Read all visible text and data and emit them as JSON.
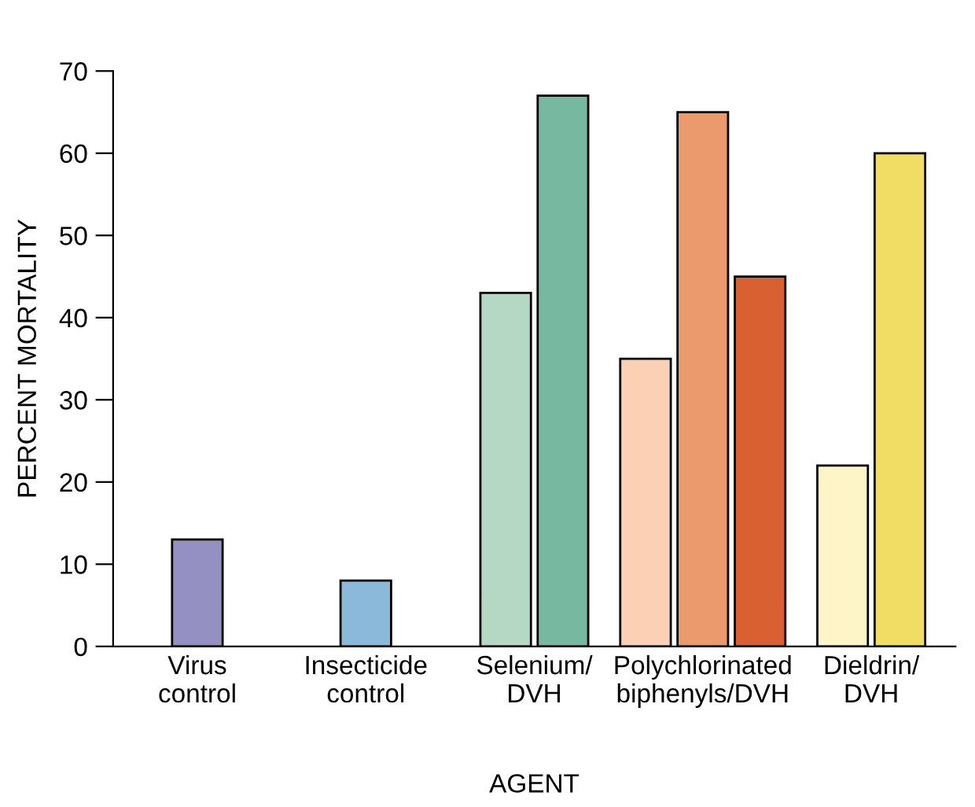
{
  "chart_data": {
    "type": "bar",
    "xlabel": "AGENT",
    "ylabel": "PERCENT MORTALITY",
    "categories": [
      "Virus\ncontrol",
      "Insecticide\ncontrol",
      "Selenium/\nDVH",
      "Polychlorinated\nbiphenyls/DVH",
      "Dieldrin/\nDVH"
    ],
    "series": [
      {
        "values": [
          13,
          8,
          43,
          35,
          22
        ],
        "colors": [
          "#9590c2",
          "#8ab9da",
          "#b5d8c5",
          "#fbd0b5",
          "#fdf5c8"
        ]
      },
      {
        "values": [
          null,
          null,
          67,
          65,
          60
        ],
        "colors": [
          null,
          null,
          "#76b8a0",
          "#eb9a6e",
          "#f1dd64"
        ]
      },
      {
        "values": [
          null,
          null,
          null,
          45,
          null
        ],
        "colors": [
          null,
          null,
          null,
          "#d96030",
          null
        ]
      }
    ],
    "ylim": [
      0,
      70
    ],
    "yticks": [
      0,
      10,
      20,
      30,
      40,
      50,
      60,
      70
    ]
  }
}
